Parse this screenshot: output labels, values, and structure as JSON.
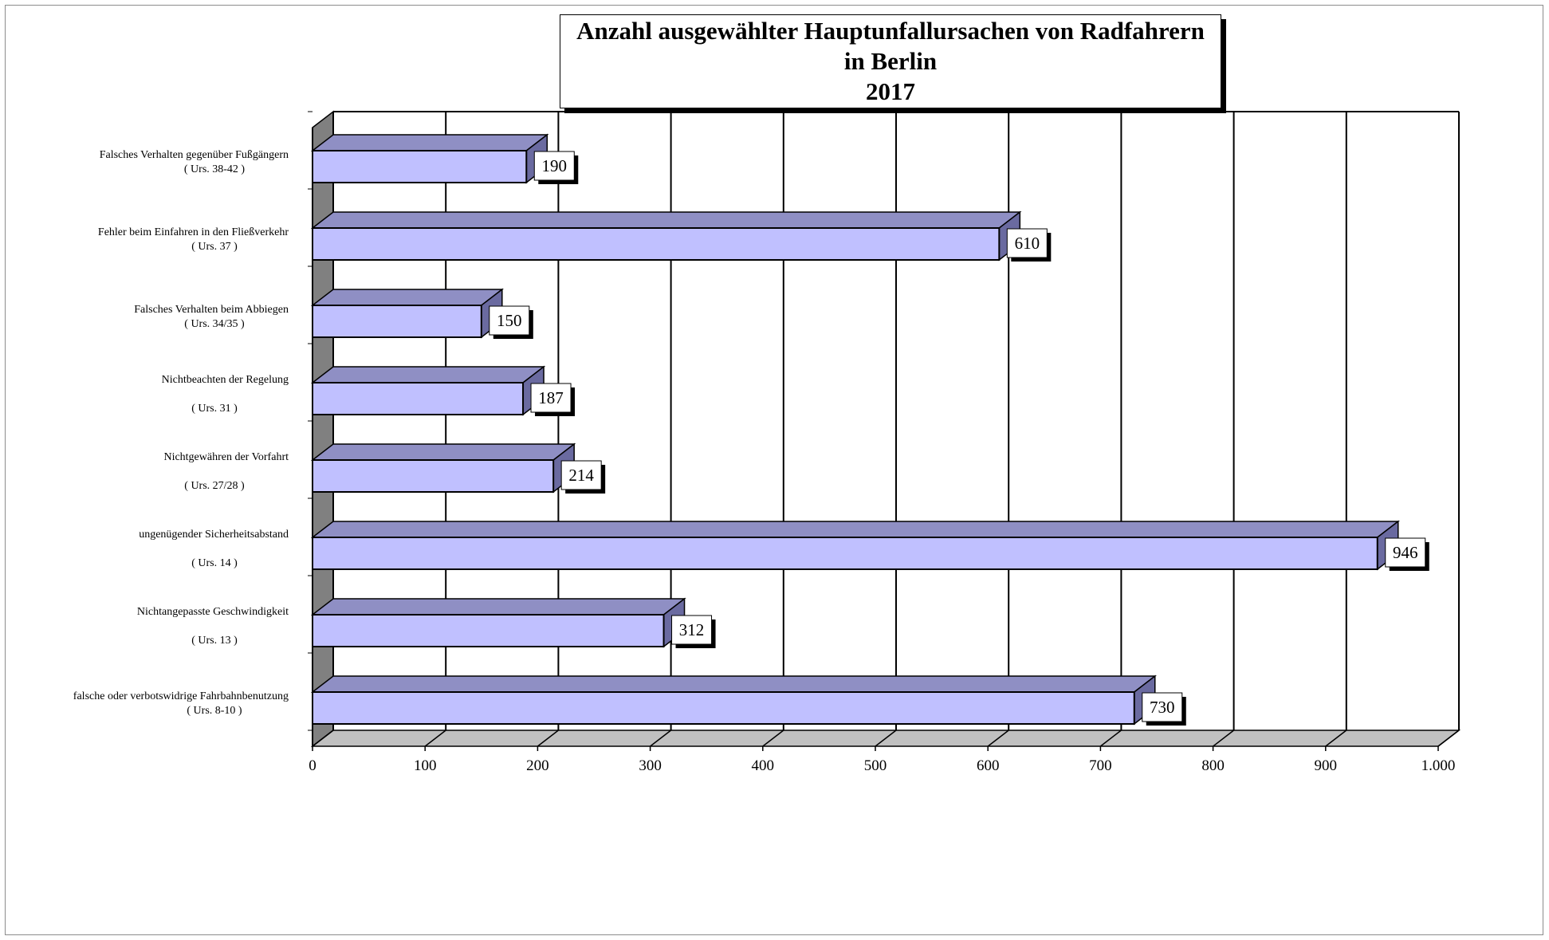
{
  "chart_data": {
    "type": "bar",
    "orientation": "horizontal",
    "title_lines": [
      "Anzahl ausgewählter Hauptunfallursachen von Radfahrern",
      "in Berlin",
      "2017"
    ],
    "categories": [
      {
        "line1": "Falsches Verhalten gegenüber Fußgängern",
        "line2": "( Urs. 38-42 )"
      },
      {
        "line1": "Fehler beim Einfahren in den Fließverkehr",
        "line2": "( Urs. 37 )"
      },
      {
        "line1": "Falsches Verhalten beim Abbiegen",
        "line2": "( Urs. 34/35 )"
      },
      {
        "line1": "Nichtbeachten der Regelung",
        "line2": "( Urs. 31 )"
      },
      {
        "line1": "Nichtgewähren der Vorfahrt",
        "line2": "( Urs. 27/28 )"
      },
      {
        "line1": "ungenügender Sicherheitsabstand",
        "line2": "( Urs. 14 )"
      },
      {
        "line1": "Nichtangepasste Geschwindigkeit",
        "line2": "( Urs. 13 )"
      },
      {
        "line1": "falsche oder verbotswidrige Fahrbahnbenutzung",
        "line2": "( Urs. 8-10 )"
      }
    ],
    "values": [
      190,
      610,
      150,
      187,
      214,
      946,
      312,
      730
    ],
    "value_labels": [
      "190",
      "610",
      "150",
      "187",
      "214",
      "946",
      "312",
      "730"
    ],
    "xlim": [
      0,
      1000
    ],
    "x_ticks": [
      0,
      100,
      200,
      300,
      400,
      500,
      600,
      700,
      800,
      900,
      1000
    ],
    "x_tick_labels": [
      "0",
      "100",
      "200",
      "300",
      "400",
      "500",
      "600",
      "700",
      "800",
      "900",
      "1.000"
    ],
    "grid": true,
    "legend": "none",
    "colors": {
      "bar_front": "#c0c0ff",
      "bar_top": "#8f8fc4",
      "bar_side": "#6a6aa0",
      "floor": "#c0c0c0",
      "wall_side": "#808080",
      "grid": "#000000"
    }
  }
}
